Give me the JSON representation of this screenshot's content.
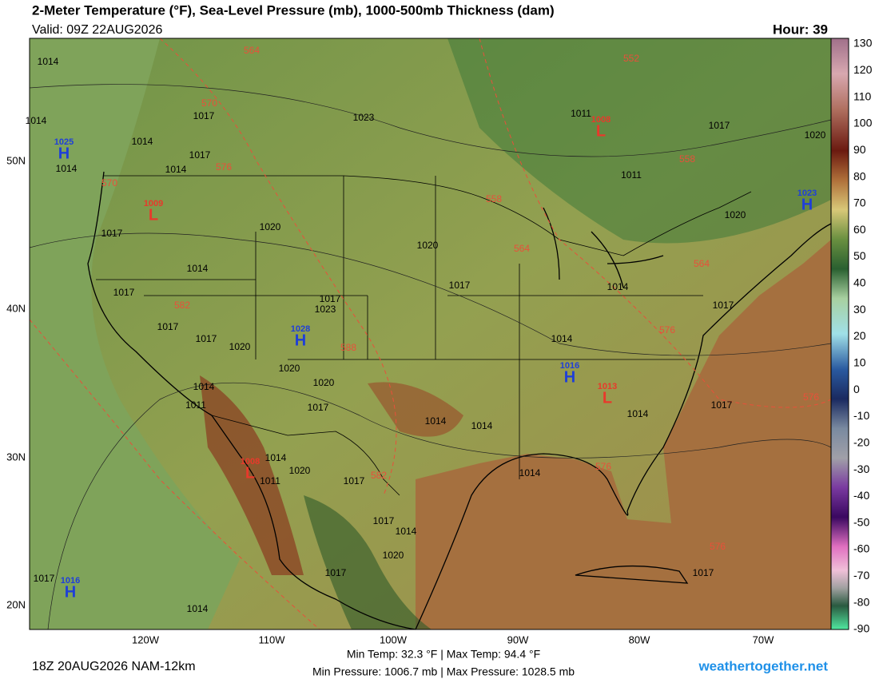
{
  "header": {
    "title": "2-Meter Temperature (°F), Sea-Level Pressure (mb), 1000-500mb Thickness (dam)",
    "valid": "Valid: 09Z 22AUG2026",
    "hour": "Hour: 39"
  },
  "colorbar": {
    "ticks": [
      130,
      120,
      110,
      100,
      90,
      80,
      70,
      60,
      50,
      40,
      30,
      20,
      10,
      0,
      -10,
      -20,
      -30,
      -40,
      -50,
      -60,
      -70,
      -80,
      -90
    ]
  },
  "longitude_labels": [
    "120W",
    "110W",
    "100W",
    "90W",
    "80W",
    "70W"
  ],
  "latitude_labels": [
    "50N",
    "40N",
    "30N",
    "20N"
  ],
  "pressure_centers": [
    {
      "letter": "H",
      "value": "1025",
      "color": "#1f3fd8"
    },
    {
      "letter": "L",
      "value": "1009",
      "color": "#e8392b"
    },
    {
      "letter": "H",
      "value": "1028",
      "color": "#1f3fd8"
    },
    {
      "letter": "L",
      "value": "1008",
      "color": "#e8392b"
    },
    {
      "letter": "H",
      "value": "1023",
      "color": "#1f3fd8"
    },
    {
      "letter": "H",
      "value": "1016",
      "color": "#1f3fd8"
    },
    {
      "letter": "L",
      "value": "1013",
      "color": "#e8392b"
    },
    {
      "letter": "L",
      "value": "1008",
      "color": "#e8392b"
    },
    {
      "letter": "H",
      "value": "1016",
      "color": "#1f3fd8"
    }
  ],
  "isobar_labels": [
    "1014",
    "1014",
    "1014",
    "1017",
    "1017",
    "1014",
    "1014",
    "1023",
    "1011",
    "1011",
    "1017",
    "1020",
    "1020",
    "1020",
    "1020",
    "1017",
    "1014",
    "1017",
    "1017",
    "1014",
    "1017",
    "1023",
    "1017",
    "1017",
    "1017",
    "1020",
    "1014",
    "1020",
    "1020",
    "1014",
    "1011",
    "1017",
    "1014",
    "1014",
    "1014",
    "1017",
    "1014",
    "1011",
    "1020",
    "1017",
    "1014",
    "1017",
    "1014",
    "1020",
    "1017",
    "1017",
    "1017",
    "1014"
  ],
  "thickness_labels": [
    "564",
    "570",
    "576",
    "570",
    "582",
    "588",
    "582",
    "552",
    "558",
    "558",
    "564",
    "564",
    "576",
    "576",
    "576",
    "576"
  ],
  "footer": {
    "run": "18Z 20AUG2026 NAM-12km",
    "temps": "Min Temp:  32.3 °F | Max Temp:  94.4 °F",
    "pressure": "Min Pressure: 1006.7 mb | Max Pressure: 1028.5 mb",
    "site": "weathertogether.net"
  }
}
